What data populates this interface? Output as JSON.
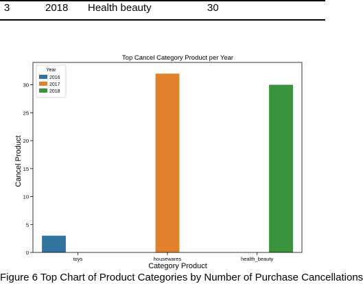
{
  "table": {
    "row": {
      "index": "3",
      "year": "2018",
      "category": "Health beauty",
      "value": "30"
    }
  },
  "chart_data": {
    "type": "bar",
    "title": "Top Cancel Category Product per Year",
    "xlabel": "Category Product",
    "ylabel": "Cancel Product",
    "categories": [
      "toys",
      "housewares",
      "health_beauty"
    ],
    "series": [
      {
        "name": "2016",
        "color": "#3274a1",
        "values": [
          3,
          null,
          null
        ]
      },
      {
        "name": "2017",
        "color": "#e1812c",
        "values": [
          null,
          32,
          null
        ]
      },
      {
        "name": "2018",
        "color": "#3a923a",
        "values": [
          null,
          null,
          30
        ]
      }
    ],
    "ylim": [
      0,
      34
    ],
    "yticks": [
      0,
      5,
      10,
      15,
      20,
      25,
      30
    ],
    "legend": {
      "title": "Year",
      "placement": "top-left"
    },
    "grid": false
  },
  "caption": "Figure 6 Top Chart of Product Categories by Number of Purchase Cancellations"
}
